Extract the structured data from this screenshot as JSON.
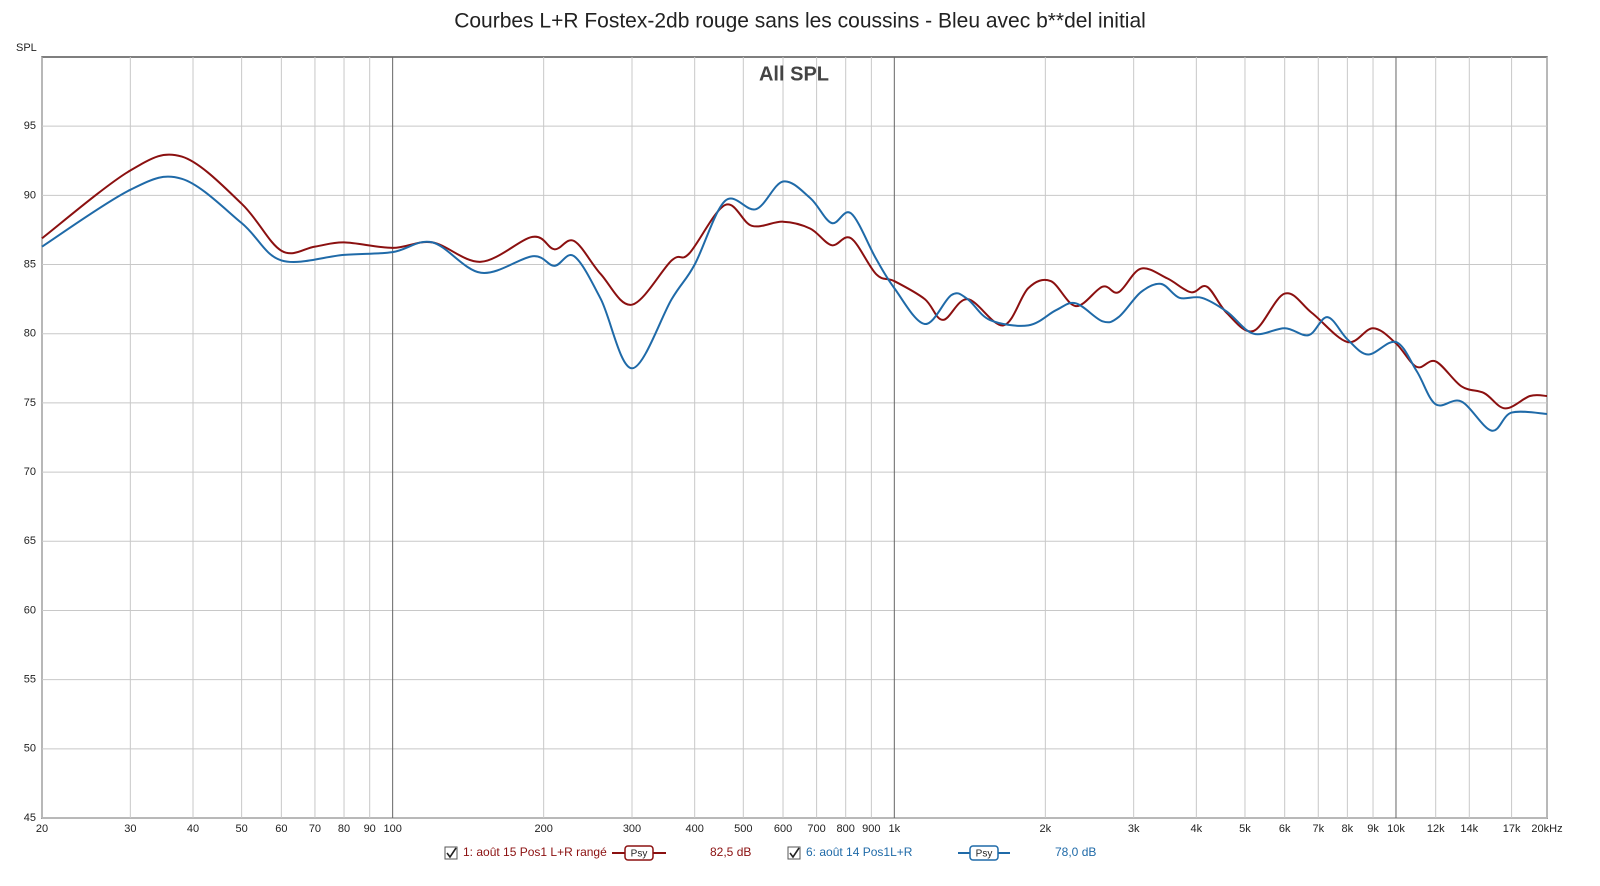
{
  "chart_data": {
    "type": "line",
    "title": "Courbes L+R Fostex-2db rouge sans les coussins - Bleu avec b**del initial",
    "annotation": "All SPL",
    "y_label": "SPL",
    "xscale": "log",
    "grid": true,
    "xlim": [
      20,
      20000
    ],
    "ylim": [
      45,
      100
    ],
    "yticks": [
      45,
      50,
      55,
      60,
      65,
      70,
      75,
      80,
      85,
      90,
      95
    ],
    "xticks": [
      20,
      30,
      40,
      50,
      60,
      70,
      80,
      90,
      100,
      200,
      300,
      400,
      500,
      600,
      700,
      800,
      900,
      {
        "value": 1000,
        "label": "1k"
      },
      {
        "value": 2000,
        "label": "2k"
      },
      {
        "value": 3000,
        "label": "3k"
      },
      {
        "value": 4000,
        "label": "4k"
      },
      {
        "value": 5000,
        "label": "5k"
      },
      {
        "value": 6000,
        "label": "6k"
      },
      {
        "value": 7000,
        "label": "7k"
      },
      {
        "value": 8000,
        "label": "8k"
      },
      {
        "value": 9000,
        "label": "9k"
      },
      {
        "value": 10000,
        "label": "10k"
      },
      {
        "value": 12000,
        "label": "12k"
      },
      {
        "value": 14000,
        "label": "14k"
      },
      {
        "value": 17000,
        "label": "17k"
      },
      {
        "value": 20000,
        "label": "20kHz"
      }
    ],
    "series": [
      {
        "name": "1: août 15 Pos1 L+R rangé",
        "smoothing": "Psy",
        "level_label": "82,5 dB",
        "color": "#8b1010",
        "x": [
          20,
          30,
          38,
          50,
          60,
          70,
          80,
          100,
          120,
          150,
          190,
          210,
          230,
          260,
          300,
          360,
          390,
          460,
          520,
          600,
          680,
          750,
          820,
          920,
          1000,
          1150,
          1250,
          1400,
          1650,
          1850,
          2050,
          2300,
          2600,
          2800,
          3100,
          3500,
          3900,
          4200,
          4600,
          5200,
          6000,
          6800,
          8000,
          9000,
          10000,
          11000,
          12000,
          13500,
          15000,
          16500,
          18500,
          20000
        ],
        "values": [
          86.9,
          91.8,
          92.8,
          89.4,
          86,
          86.3,
          86.6,
          86.2,
          86.6,
          85.2,
          87,
          86.1,
          86.7,
          84.3,
          82.1,
          85.3,
          85.8,
          89.3,
          87.8,
          88.1,
          87.6,
          86.4,
          86.9,
          84.3,
          83.8,
          82.5,
          81,
          82.5,
          80.6,
          83.3,
          83.8,
          82,
          83.4,
          83,
          84.7,
          84,
          83,
          83.4,
          81.5,
          80.2,
          82.9,
          81.5,
          79.4,
          80.4,
          79.3,
          77.6,
          78,
          76.2,
          75.7,
          74.6,
          75.5,
          75.5
        ]
      },
      {
        "name": "6: août 14 Pos1L+R",
        "smoothing": "Psy",
        "level_label": "78,0 dB",
        "color": "#1f6aa8",
        "x": [
          20,
          30,
          38,
          50,
          60,
          80,
          100,
          120,
          150,
          190,
          210,
          230,
          260,
          300,
          360,
          400,
          460,
          530,
          600,
          680,
          750,
          820,
          920,
          1000,
          1150,
          1300,
          1400,
          1550,
          1850,
          2100,
          2300,
          2600,
          2800,
          3100,
          3400,
          3700,
          4100,
          4600,
          5200,
          6000,
          6700,
          7300,
          8000,
          8800,
          10000,
          11000,
          12000,
          13500,
          15500,
          17000,
          20000
        ],
        "values": [
          86.3,
          90.4,
          91.2,
          88,
          85.3,
          85.7,
          85.9,
          86.6,
          84.4,
          85.6,
          84.9,
          85.6,
          82.5,
          77.5,
          82.5,
          85,
          89.6,
          89,
          91,
          89.8,
          88,
          88.7,
          85.4,
          83.3,
          80.7,
          82.8,
          82.5,
          81,
          80.6,
          81.7,
          82.2,
          80.9,
          81.2,
          83,
          83.6,
          82.6,
          82.6,
          81.6,
          80,
          80.4,
          79.9,
          81.2,
          79.6,
          78.5,
          79.4,
          77.3,
          74.9,
          75.1,
          73,
          74.3,
          74.2
        ]
      }
    ]
  }
}
